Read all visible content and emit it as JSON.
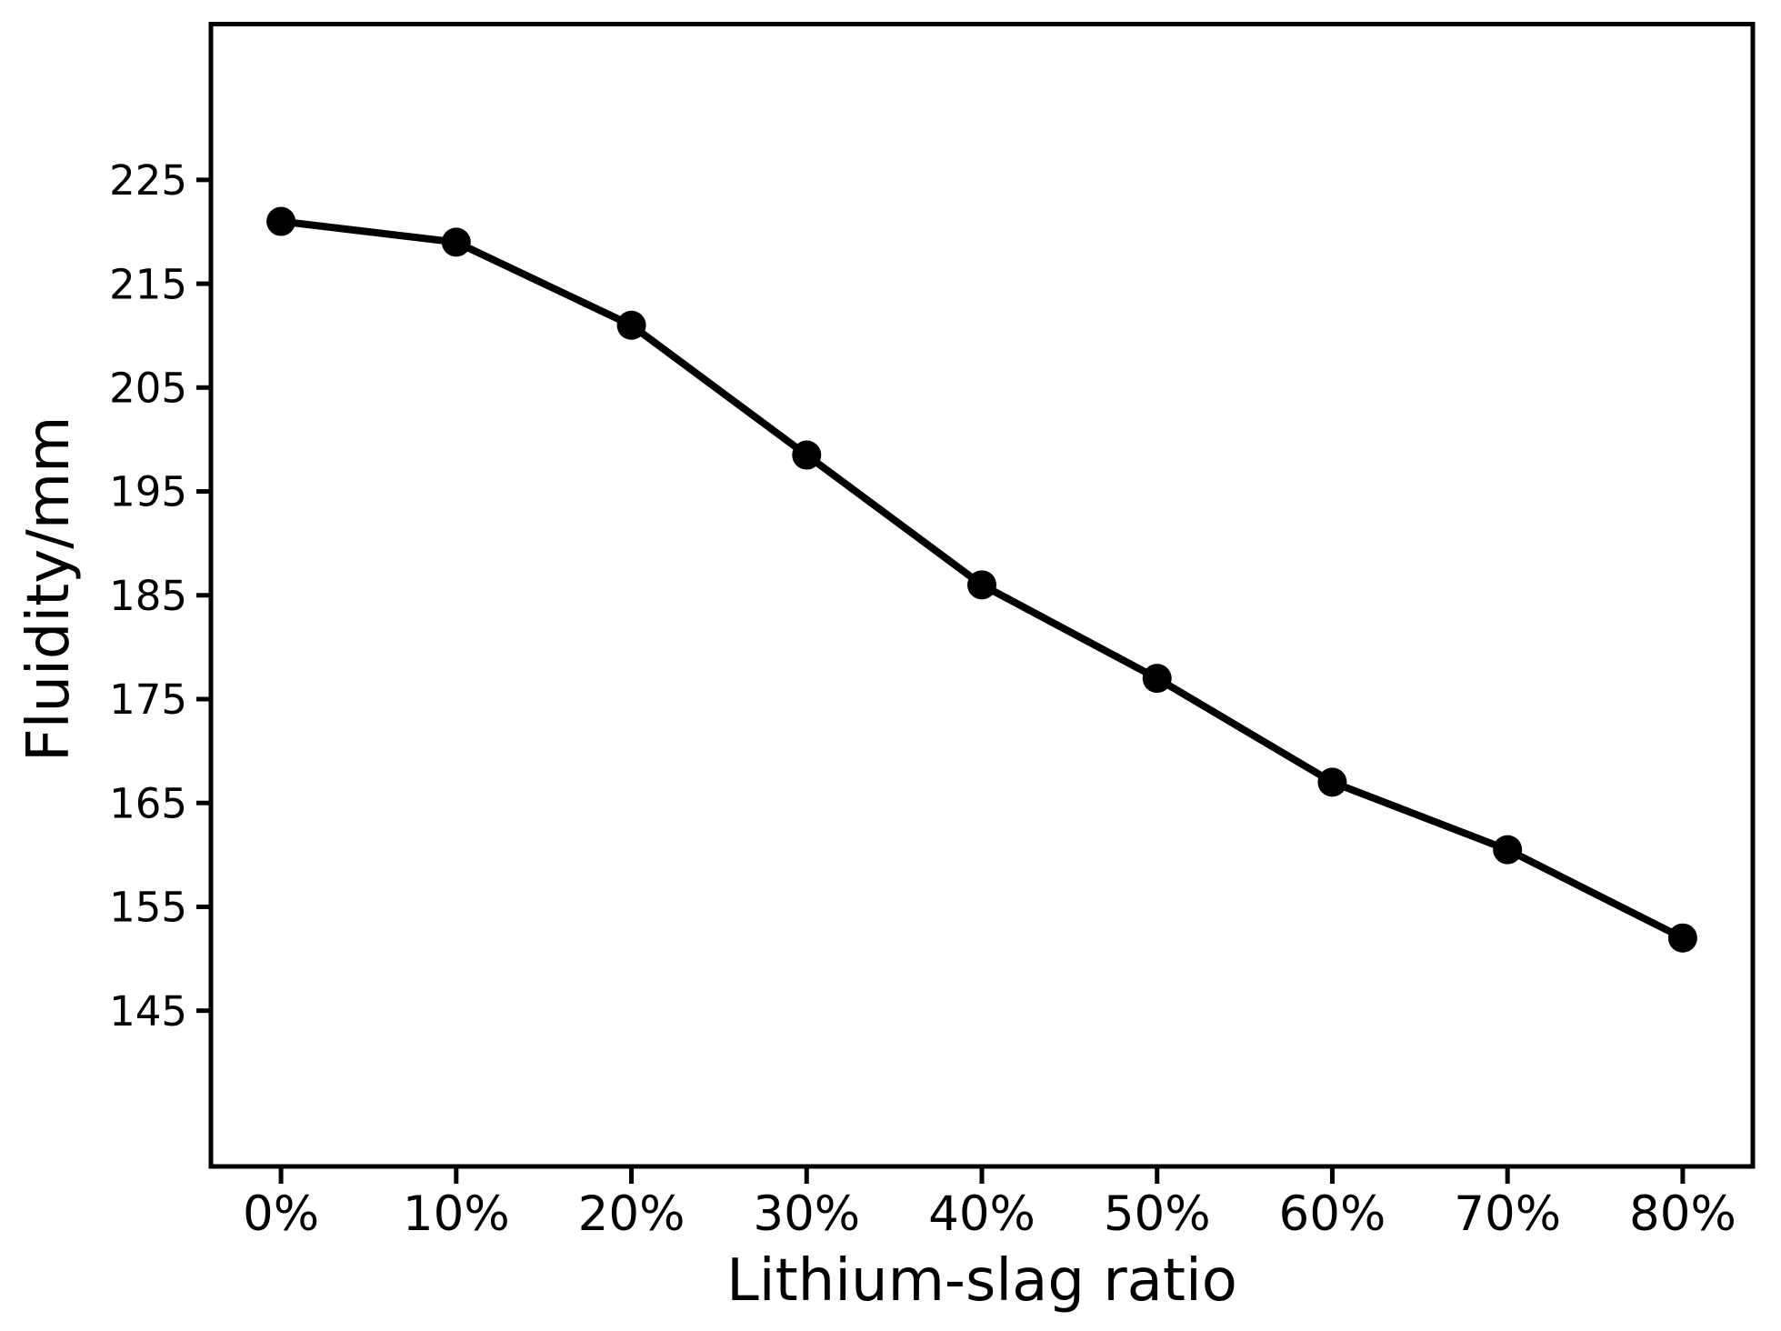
{
  "page": {
    "background": "#ffffff",
    "foreground": "#000000"
  },
  "chart_data": {
    "type": "line",
    "title": "",
    "xlabel": "Lithium-slag ratio",
    "ylabel": "Fluidity/mm",
    "categories": [
      "0%",
      "10%",
      "20%",
      "30%",
      "40%",
      "50%",
      "60%",
      "70%",
      "80%"
    ],
    "series": [
      {
        "name": "Fluidity",
        "values": [
          221,
          219,
          211,
          198.5,
          186,
          177,
          167,
          160.5,
          152
        ]
      }
    ],
    "yticks": [
      145,
      155,
      165,
      175,
      185,
      195,
      205,
      215,
      225
    ],
    "ylim": [
      130,
      240
    ],
    "x_margin": 0.4,
    "grid": false,
    "legend": "none",
    "line_color": "#000000",
    "marker": "circle",
    "marker_color": "#000000",
    "background": "#ffffff"
  }
}
